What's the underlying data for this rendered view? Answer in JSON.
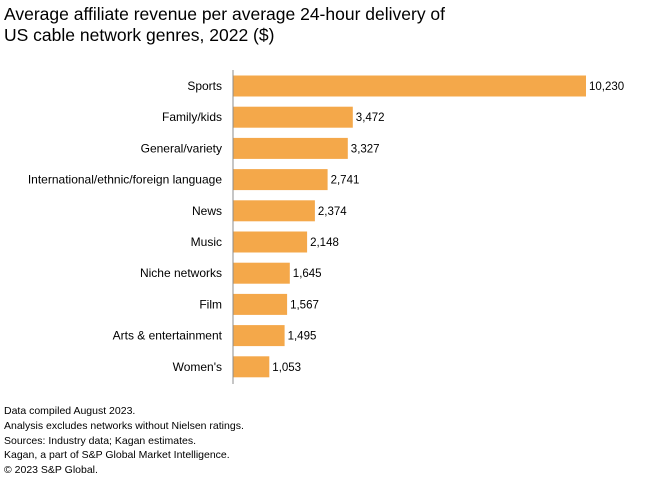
{
  "chart_data": {
    "type": "bar",
    "orientation": "horizontal",
    "title": "Average affiliate revenue per average 24-hour delivery of US cable network genres, 2022 ($)",
    "title_lines": [
      "Average affiliate revenue per average 24-hour delivery of",
      "US cable network genres, 2022 ($)"
    ],
    "xlabel": "",
    "ylabel": "",
    "xlim": [
      0,
      10230
    ],
    "grid": false,
    "legend": "none",
    "categories": [
      "Sports",
      "Family/kids",
      "General/variety",
      "International/ethnic/foreign language",
      "News",
      "Music",
      "Niche networks",
      "Film",
      "Arts & entertainment",
      "Women's"
    ],
    "values": [
      10230,
      3472,
      3327,
      2741,
      2374,
      2148,
      1645,
      1567,
      1495,
      1053
    ],
    "value_labels": [
      "10,230",
      "3,472",
      "3,327",
      "2,741",
      "2,374",
      "2,148",
      "1,645",
      "1,567",
      "1,495",
      "1,053"
    ],
    "bar_color": "#F4A84A",
    "axis_color": "#8C8C8C"
  },
  "notes": [
    "Data compiled August 2023.",
    "Analysis excludes networks without Nielsen ratings.",
    "Sources: Industry data; Kagan estimates.",
    "Kagan, a part of S&P Global Market Intelligence.",
    "© 2023 S&P Global."
  ]
}
